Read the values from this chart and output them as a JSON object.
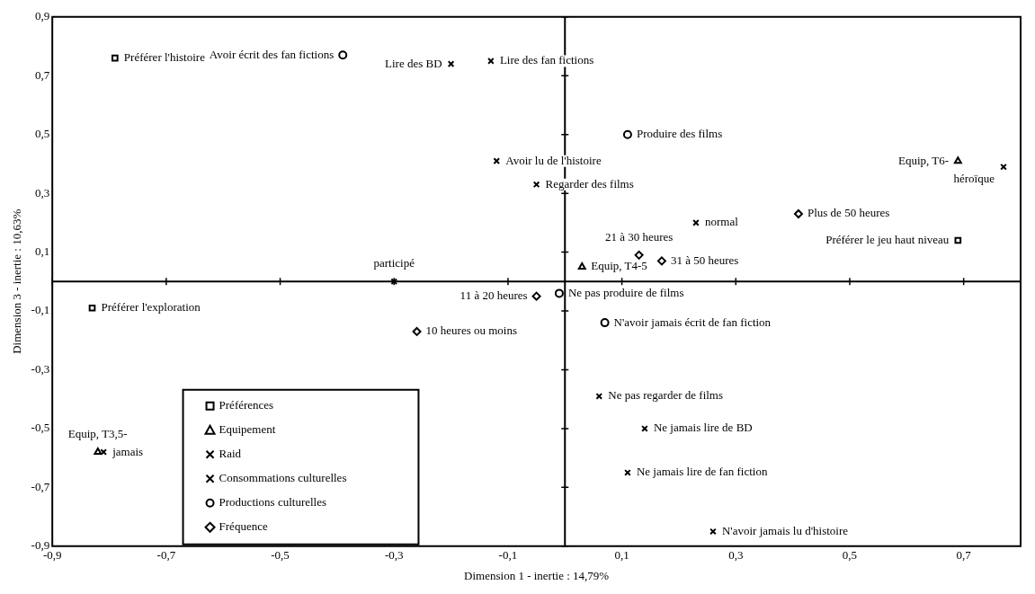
{
  "chart_data": {
    "type": "scatter",
    "xlabel": "Dimension 1 - inertie : 14,79%",
    "ylabel": "Dimension 3 - inertie : 10,63%",
    "xlim": [
      -0.9,
      0.8
    ],
    "ylim": [
      -0.9,
      0.9
    ],
    "xticks": [
      {
        "value": -0.9,
        "label": "-0,9"
      },
      {
        "value": -0.7,
        "label": "-0,7"
      },
      {
        "value": -0.5,
        "label": "-0,5"
      },
      {
        "value": -0.3,
        "label": "-0,3"
      },
      {
        "value": -0.1,
        "label": "-0,1"
      },
      {
        "value": 0.1,
        "label": "0,1"
      },
      {
        "value": 0.3,
        "label": "0,3"
      },
      {
        "value": 0.5,
        "label": "0,5"
      },
      {
        "value": 0.7,
        "label": "0,7"
      }
    ],
    "yticks": [
      {
        "value": -0.9,
        "label": "-0,9"
      },
      {
        "value": -0.7,
        "label": "-0,7"
      },
      {
        "value": -0.5,
        "label": "-0,5"
      },
      {
        "value": -0.3,
        "label": "-0,3"
      },
      {
        "value": -0.1,
        "label": "-0,1"
      },
      {
        "value": 0.1,
        "label": "0,1"
      },
      {
        "value": 0.3,
        "label": "0,3"
      },
      {
        "value": 0.5,
        "label": "0,5"
      },
      {
        "value": 0.7,
        "label": "0,7"
      },
      {
        "value": 0.9,
        "label": "0,9"
      }
    ],
    "grid": false,
    "legend": "bottom left",
    "series": [
      {
        "name": "Préférences",
        "color": "#000000",
        "marker": "square",
        "x": [
          -0.79,
          -0.83,
          0.69
        ],
        "values": [
          0.76,
          -0.09,
          0.14
        ]
      },
      {
        "name": "Equipement",
        "color": "#000000",
        "marker": "triangle",
        "x": [
          0.69,
          0.03,
          -0.82
        ],
        "values": [
          0.41,
          0.05,
          -0.58
        ]
      },
      {
        "name": "Raid",
        "color": "#000000",
        "marker": "cross",
        "x": [
          -0.3,
          0.23,
          0.77,
          -0.81
        ],
        "values": [
          0.0,
          0.2,
          0.39,
          -0.58
        ]
      },
      {
        "name": "Consommations culturelles",
        "color": "#000000",
        "marker": "cross",
        "x": [
          -0.2,
          -0.13,
          -0.12,
          -0.05,
          0.06,
          0.14,
          0.11,
          0.26
        ],
        "values": [
          0.74,
          0.75,
          0.41,
          0.33,
          -0.39,
          -0.5,
          -0.65,
          -0.85
        ]
      },
      {
        "name": "Productions culturelles",
        "color": "#000000",
        "marker": "circle",
        "x": [
          -0.39,
          0.11,
          -0.01,
          0.07
        ],
        "values": [
          0.77,
          0.5,
          -0.04,
          -0.14
        ]
      },
      {
        "name": "Fréquence",
        "color": "#000000",
        "marker": "diamond",
        "x": [
          -0.26,
          -0.05,
          0.13,
          0.17,
          0.41
        ],
        "values": [
          -0.17,
          -0.05,
          0.09,
          0.07,
          0.23
        ]
      }
    ],
    "annotations": [
      {
        "text": "Préférer l'histoire",
        "x": -0.79,
        "y": 0.76
      },
      {
        "text": "Préférer l'exploration",
        "x": -0.83,
        "y": -0.09
      },
      {
        "text": "Préférer le jeu haut niveau",
        "x": 0.69,
        "y": 0.14
      },
      {
        "text": "Equip, T6-",
        "x": 0.69,
        "y": 0.41
      },
      {
        "text": "Equip, T4-5",
        "x": 0.03,
        "y": 0.05
      },
      {
        "text": "Equip, T3,5-",
        "x": -0.82,
        "y": -0.58
      },
      {
        "text": "participé",
        "x": -0.3,
        "y": 0.0
      },
      {
        "text": "normal",
        "x": 0.23,
        "y": 0.2
      },
      {
        "text": "héroïque",
        "x": 0.77,
        "y": 0.39
      },
      {
        "text": "jamais",
        "x": -0.81,
        "y": -0.58
      },
      {
        "text": "Lire des BD",
        "x": -0.2,
        "y": 0.74
      },
      {
        "text": "Lire des fan fictions",
        "x": -0.13,
        "y": 0.75
      },
      {
        "text": "Avoir lu de l'histoire",
        "x": -0.12,
        "y": 0.41
      },
      {
        "text": "Regarder des films",
        "x": -0.05,
        "y": 0.33
      },
      {
        "text": "Ne pas regarder de films",
        "x": 0.06,
        "y": -0.39
      },
      {
        "text": "Ne jamais lire de BD",
        "x": 0.14,
        "y": -0.5
      },
      {
        "text": "Ne jamais lire de fan fiction",
        "x": 0.11,
        "y": -0.65
      },
      {
        "text": "N'avoir jamais lu d'histoire",
        "x": 0.26,
        "y": -0.85
      },
      {
        "text": "Avoir écrit des fan fictions",
        "x": -0.39,
        "y": 0.77
      },
      {
        "text": "Produire des films",
        "x": 0.11,
        "y": 0.5
      },
      {
        "text": "Ne pas produire de films",
        "x": -0.01,
        "y": -0.04
      },
      {
        "text": "N'avoir jamais écrit de fan fiction",
        "x": 0.07,
        "y": -0.14
      },
      {
        "text": "10 heures ou moins",
        "x": -0.26,
        "y": -0.17
      },
      {
        "text": "11 à 20 heures",
        "x": -0.05,
        "y": -0.05
      },
      {
        "text": "21 à 30 heures",
        "x": 0.13,
        "y": 0.09
      },
      {
        "text": "31 à 50 heures",
        "x": 0.17,
        "y": 0.07
      },
      {
        "text": "Plus de 50 heures",
        "x": 0.41,
        "y": 0.23
      }
    ]
  }
}
